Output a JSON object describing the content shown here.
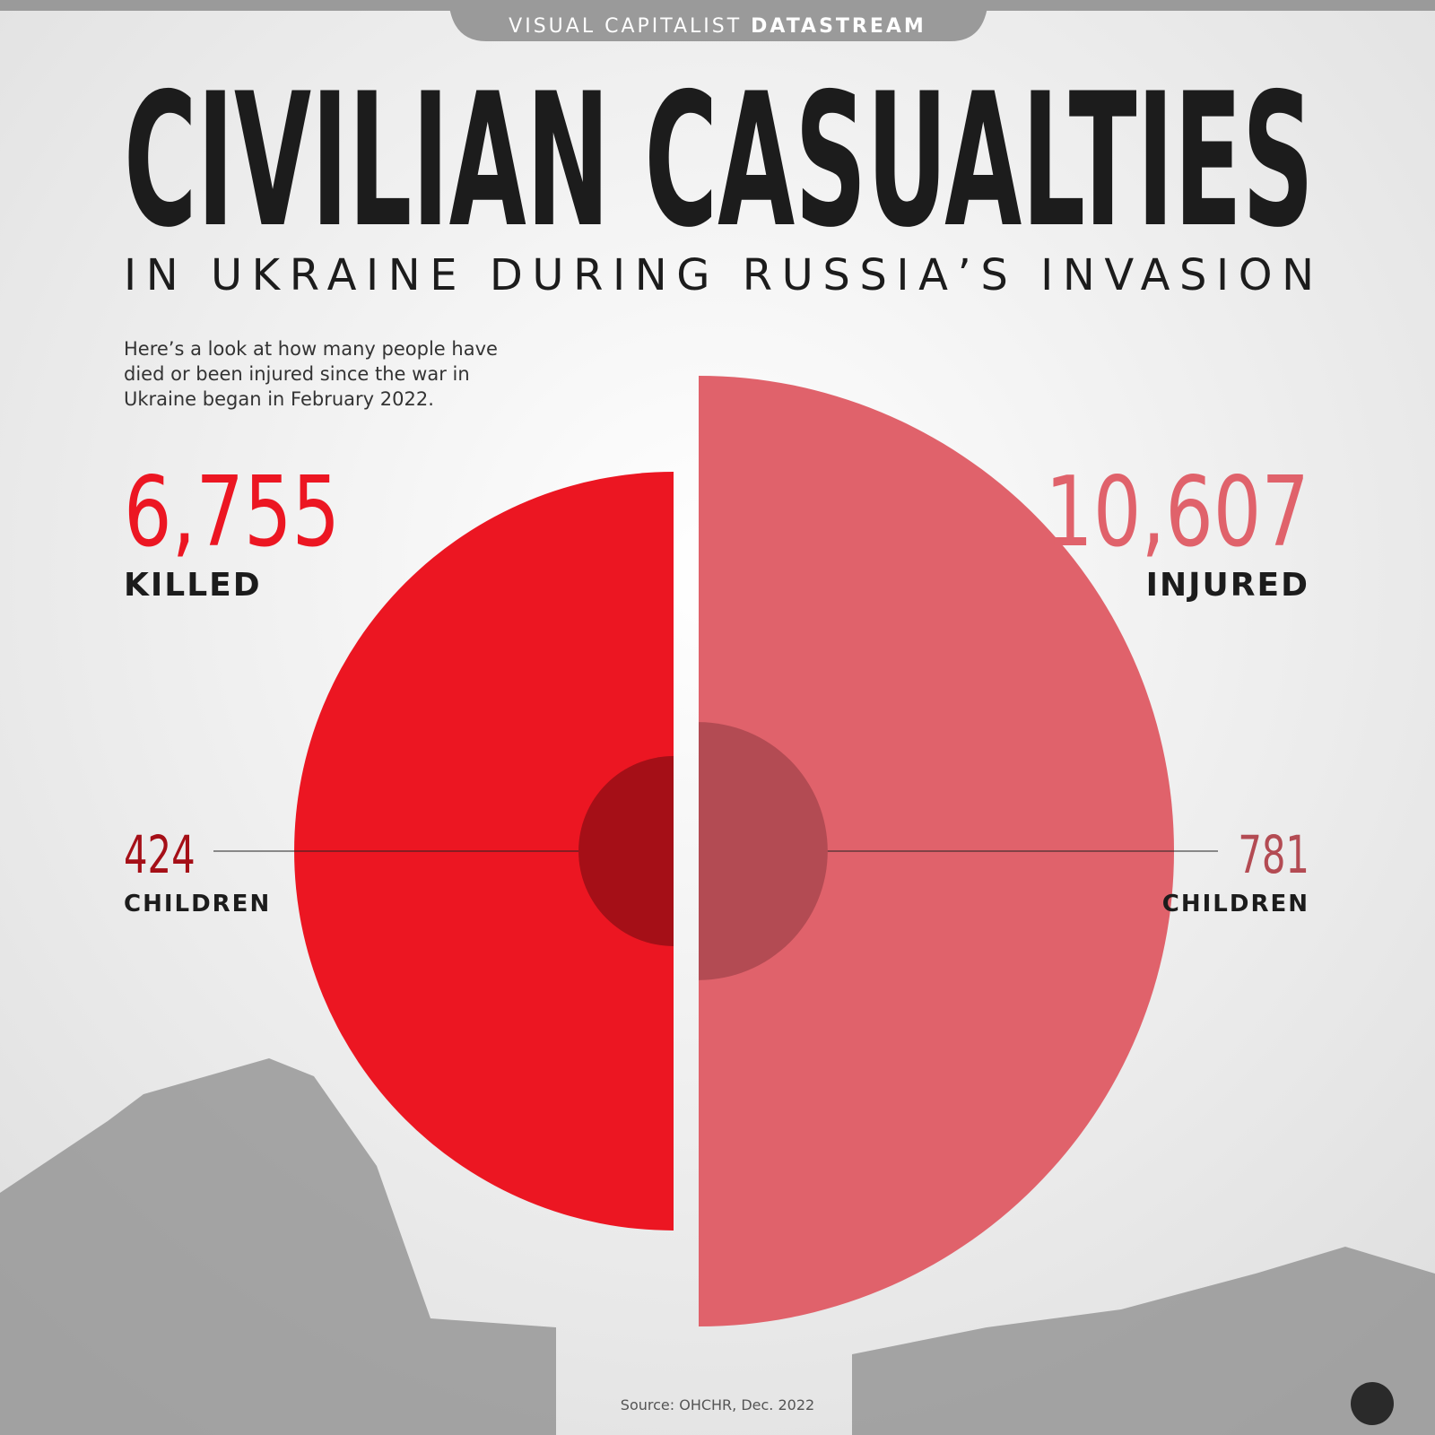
{
  "brand": {
    "name": "VISUAL CAPITALIST",
    "product": "DATASTREAM"
  },
  "chart_data": {
    "type": "half-circle",
    "title": "CIVILIAN CASUALTIES",
    "subtitle": "IN UKRAINE DURING RUSSIA’S INVASION",
    "description": [
      "Here’s a look at how many people have",
      "died or been injured since the war in",
      "Ukraine began in February 2022."
    ],
    "categories": [
      "KILLED",
      "INJURED"
    ],
    "values": [
      6755,
      10607
    ],
    "value_labels": [
      "6,755",
      "10,607"
    ],
    "colors": [
      "#ec1622",
      "#e0626b"
    ],
    "children": {
      "name": "CHILDREN",
      "values": [
        424,
        781
      ],
      "colors": [
        "#a50f17",
        "#b34b53"
      ]
    },
    "source": "Source: OHCHR, Dec. 2022"
  }
}
